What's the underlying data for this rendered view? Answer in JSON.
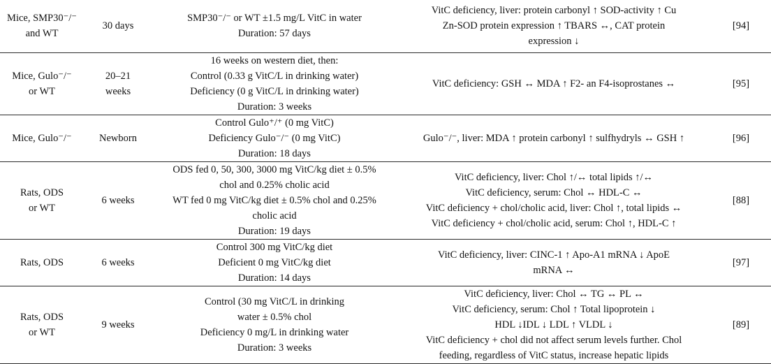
{
  "rows": [
    {
      "model": [
        "Mice, SMP30⁻/⁻",
        "and WT"
      ],
      "age": [
        "30 days"
      ],
      "treatment": [
        "SMP30⁻/⁻ or WT ±1.5 mg/L VitC in water",
        "Duration: 57 days"
      ],
      "outcome": [
        "VitC deficiency, liver: protein carbonyl ↑ SOD-activity ↑ Cu",
        "Zn-SOD protein expression ↑ TBARS ↔, CAT protein",
        "expression ↓"
      ],
      "ref": "[94]"
    },
    {
      "model": [
        "Mice, Gulo⁻/⁻",
        "or WT"
      ],
      "age": [
        "20–21",
        "weeks"
      ],
      "treatment": [
        "16 weeks on western diet, then:",
        "Control (0.33 g VitC/L in drinking water)",
        "Deficiency (0 g VitC/L in drinking water)",
        "Duration: 3 weeks"
      ],
      "outcome": [
        "VitC deficiency: GSH ↔ MDA ↑ F2- an F4-isoprostanes ↔"
      ],
      "ref": "[95]"
    },
    {
      "model": [
        "Mice, Gulo⁻/⁻"
      ],
      "age": [
        "Newborn"
      ],
      "treatment": [
        "Control Gulo⁺/⁺ (0 mg VitC)",
        "Deficiency Gulo⁻/⁻ (0 mg VitC)",
        "Duration: 18 days"
      ],
      "outcome": [
        "Gulo⁻/⁻, liver: MDA ↑ protein carbonyl ↑ sulfhydryls ↔ GSH ↑"
      ],
      "ref": "[96]"
    },
    {
      "model": [
        "Rats, ODS",
        "or WT"
      ],
      "age": [
        "6 weeks"
      ],
      "treatment": [
        "ODS fed 0, 50, 300, 3000 mg VitC/kg diet ± 0.5%",
        "chol and 0.25% cholic acid",
        "WT fed 0 mg VitC/kg diet ± 0.5% chol and 0.25%",
        "cholic acid",
        "Duration: 19 days"
      ],
      "outcome": [
        "VitC deficiency, liver: Chol ↑/↔ total lipids ↑/↔",
        "VitC deficiency, serum: Chol ↔ HDL-C ↔",
        "VitC deficiency + chol/cholic acid, liver: Chol ↑, total lipids ↔",
        "VitC deficiency + chol/cholic acid, serum: Chol ↑, HDL-C ↑"
      ],
      "ref": "[88]"
    },
    {
      "model": [
        "Rats, ODS"
      ],
      "age": [
        "6 weeks"
      ],
      "treatment": [
        "Control 300 mg VitC/kg diet",
        "Deficient 0 mg VitC/kg diet",
        "Duration: 14 days"
      ],
      "outcome": [
        "VitC deficiency, liver: CINC-1 ↑ Apo-A1 mRNA ↓ ApoE",
        "mRNA ↔"
      ],
      "ref": "[97]"
    },
    {
      "model": [
        "Rats, ODS",
        "or WT"
      ],
      "age": [
        "9 weeks"
      ],
      "treatment": [
        "Control (30 mg VitC/L in drinking",
        "water ± 0.5% chol",
        "Deficiency 0 mg/L in drinking water",
        "Duration: 3 weeks"
      ],
      "outcome": [
        "VitC deficiency, liver: Chol ↔ TG ↔ PL ↔",
        "VitC deficiency, serum: Chol ↑ Total lipoprotein ↓",
        "HDL ↓IDL ↓ LDL ↑ VLDL ↓",
        "VitC deficiency + chol did not affect serum levels further. Chol",
        "feeding, regardless of VitC status, increase hepatic lipids"
      ],
      "ref": "[89]"
    }
  ]
}
